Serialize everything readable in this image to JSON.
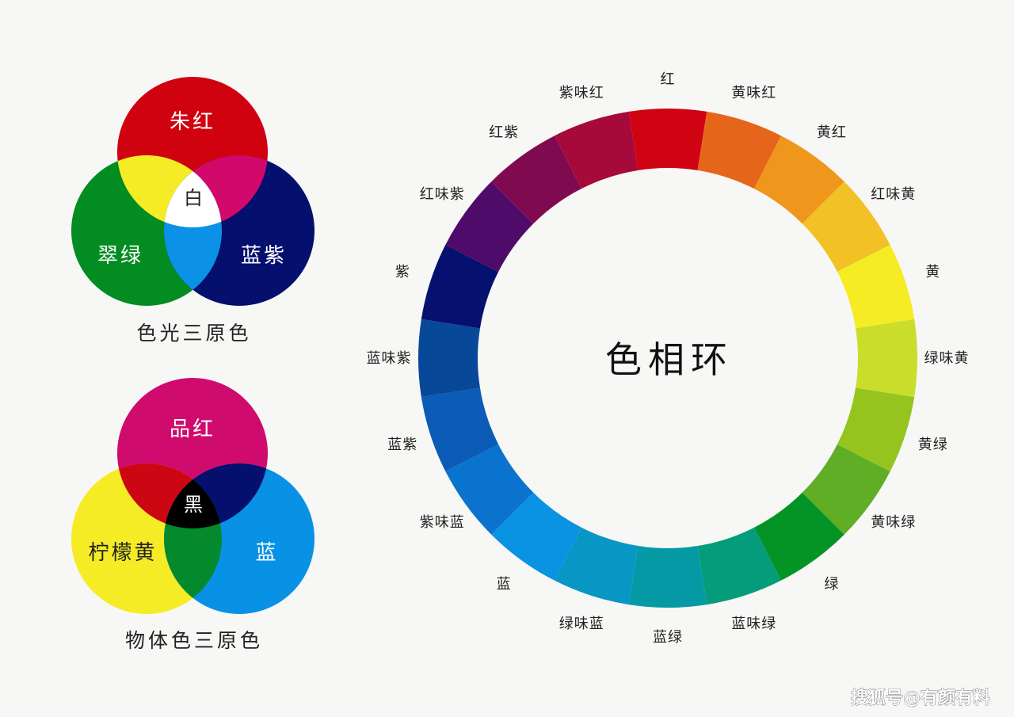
{
  "light_primaries": {
    "title": "色光三原色",
    "circles": [
      {
        "label": "朱红",
        "color": "#d0020f"
      },
      {
        "label": "翠绿",
        "color": "#028c22"
      },
      {
        "label": "蓝紫",
        "color": "#050f6e"
      }
    ],
    "overlaps": [
      {
        "color": "#f5ec25"
      },
      {
        "color": "#d3086b"
      },
      {
        "color": "#0b91e6"
      }
    ],
    "center": {
      "label": "白",
      "color": "#ffffff"
    }
  },
  "pigment_primaries": {
    "title": "物体色三原色",
    "circles": [
      {
        "label": "品红",
        "color": "#cf0b6e"
      },
      {
        "label": "柠檬黄",
        "color": "#f5ec25"
      },
      {
        "label": "蓝",
        "color": "#0891e5"
      }
    ],
    "overlaps": [
      {
        "color": "#cc0613"
      },
      {
        "color": "#050f6e"
      },
      {
        "color": "#048a2d"
      }
    ],
    "center": {
      "label": "黑",
      "color": "#000000"
    }
  },
  "color_wheel": {
    "title": "色相环",
    "segments": [
      {
        "label": "红",
        "color": "#cf0312"
      },
      {
        "label": "黄味红",
        "color": "#e5661b"
      },
      {
        "label": "黄红",
        "color": "#ef961c"
      },
      {
        "label": "红味黄",
        "color": "#f2c125"
      },
      {
        "label": "黄",
        "color": "#f5ec23"
      },
      {
        "label": "绿味黄",
        "color": "#cadd2a"
      },
      {
        "label": "黄绿",
        "color": "#95c41f"
      },
      {
        "label": "黄味绿",
        "color": "#5fae26"
      },
      {
        "label": "绿",
        "color": "#049426"
      },
      {
        "label": "蓝味绿",
        "color": "#049c7a"
      },
      {
        "label": "蓝绿",
        "color": "#0599a6"
      },
      {
        "label": "绿味蓝",
        "color": "#0897c4"
      },
      {
        "label": "蓝",
        "color": "#0a92e3"
      },
      {
        "label": "紫味蓝",
        "color": "#0a73cd"
      },
      {
        "label": "蓝紫",
        "color": "#0b5bb7"
      },
      {
        "label": "蓝味紫",
        "color": "#084899"
      },
      {
        "label": "紫",
        "color": "#06106e"
      },
      {
        "label": "红味紫",
        "color": "#4e0b6a"
      },
      {
        "label": "红紫",
        "color": "#800a50"
      },
      {
        "label": "紫味红",
        "color": "#a60a3a"
      }
    ]
  },
  "watermark": "搜狐号@有颜有料"
}
